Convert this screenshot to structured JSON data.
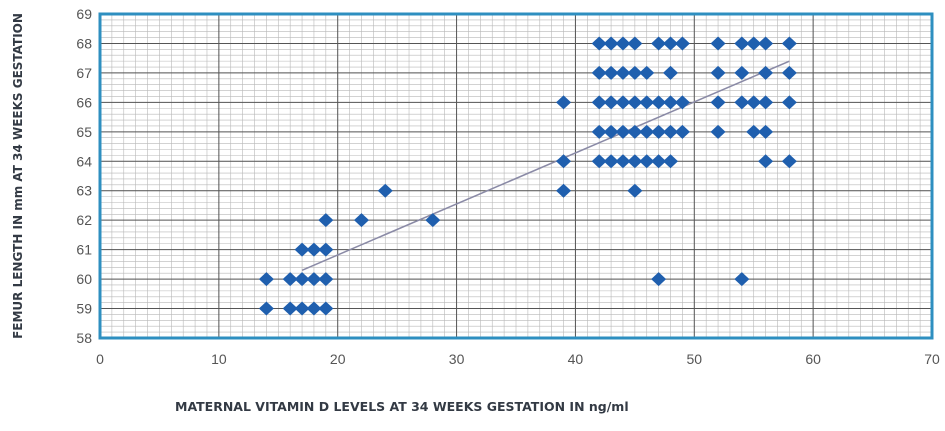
{
  "chart_data": {
    "type": "scatter",
    "title": "",
    "xlabel": "MATERNAL VITAMIN D LEVELS AT 34 WEEKS GESTATION  IN ng/ml",
    "ylabel": "FEMUR LENGTH IN mm AT 34 WEEKS GESTATION",
    "xlim": [
      0,
      70
    ],
    "ylim": [
      58,
      69
    ],
    "x_ticks": [
      0,
      10,
      20,
      30,
      40,
      50,
      60,
      70
    ],
    "y_ticks": [
      58,
      59,
      60,
      61,
      62,
      63,
      64,
      65,
      66,
      67,
      68,
      69
    ],
    "grid": true,
    "legend": "none",
    "colors": {
      "marker": "#1f5fae",
      "trendline": "#8a8aa6",
      "plot_border": "#2e8fc0",
      "major_grid": "#555555",
      "minor_grid": "#b8b8b8"
    },
    "trendline": {
      "from": [
        17,
        60.3
      ],
      "to": [
        58,
        67.4
      ]
    },
    "series": [
      {
        "points": [
          [
            14,
            59
          ],
          [
            16,
            59
          ],
          [
            17,
            59
          ],
          [
            18,
            59
          ],
          [
            19,
            59
          ],
          [
            14,
            60
          ],
          [
            16,
            60
          ],
          [
            17,
            60
          ],
          [
            18,
            60
          ],
          [
            19,
            60
          ],
          [
            17,
            61
          ],
          [
            18,
            61
          ],
          [
            19,
            61
          ],
          [
            19,
            62
          ],
          [
            22,
            62
          ],
          [
            28,
            62
          ],
          [
            24,
            63
          ],
          [
            39,
            63
          ],
          [
            45,
            63
          ],
          [
            47,
            60
          ],
          [
            54,
            60
          ],
          [
            39,
            64
          ],
          [
            42,
            64
          ],
          [
            43,
            64
          ],
          [
            44,
            64
          ],
          [
            45,
            64
          ],
          [
            46,
            64
          ],
          [
            47,
            64
          ],
          [
            48,
            64
          ],
          [
            56,
            64
          ],
          [
            58,
            64
          ],
          [
            42,
            65
          ],
          [
            43,
            65
          ],
          [
            44,
            65
          ],
          [
            45,
            65
          ],
          [
            46,
            65
          ],
          [
            47,
            65
          ],
          [
            48,
            65
          ],
          [
            49,
            65
          ],
          [
            52,
            65
          ],
          [
            55,
            65
          ],
          [
            56,
            65
          ],
          [
            39,
            66
          ],
          [
            42,
            66
          ],
          [
            43,
            66
          ],
          [
            44,
            66
          ],
          [
            45,
            66
          ],
          [
            46,
            66
          ],
          [
            47,
            66
          ],
          [
            48,
            66
          ],
          [
            49,
            66
          ],
          [
            52,
            66
          ],
          [
            54,
            66
          ],
          [
            55,
            66
          ],
          [
            56,
            66
          ],
          [
            58,
            66
          ],
          [
            42,
            67
          ],
          [
            43,
            67
          ],
          [
            44,
            67
          ],
          [
            45,
            67
          ],
          [
            46,
            67
          ],
          [
            48,
            67
          ],
          [
            52,
            67
          ],
          [
            54,
            67
          ],
          [
            56,
            67
          ],
          [
            58,
            67
          ],
          [
            42,
            68
          ],
          [
            43,
            68
          ],
          [
            44,
            68
          ],
          [
            45,
            68
          ],
          [
            47,
            68
          ],
          [
            48,
            68
          ],
          [
            49,
            68
          ],
          [
            52,
            68
          ],
          [
            54,
            68
          ],
          [
            55,
            68
          ],
          [
            56,
            68
          ],
          [
            58,
            68
          ]
        ]
      }
    ]
  }
}
